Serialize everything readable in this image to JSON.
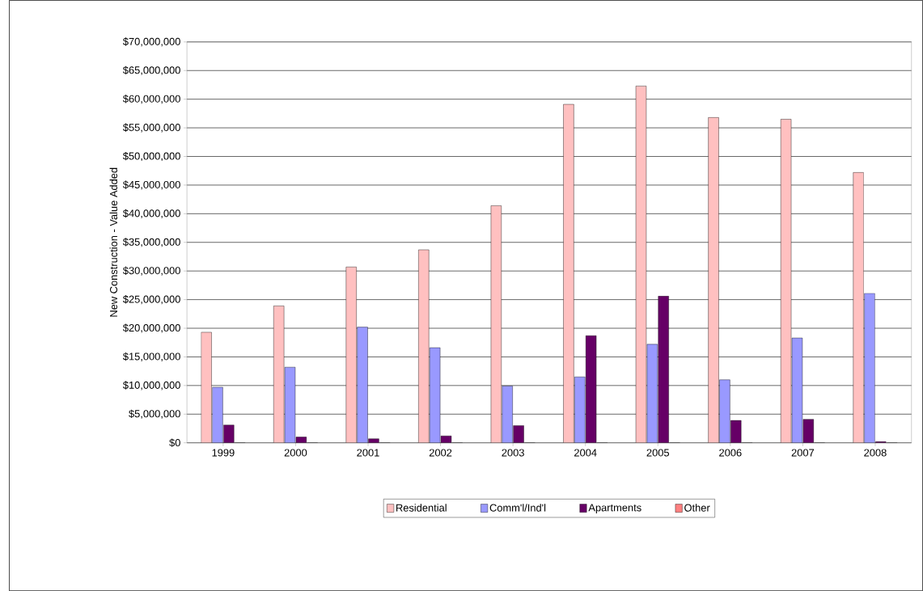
{
  "chart_data": {
    "type": "bar",
    "ylabel": "New Construction - Value Added",
    "categories": [
      "1999",
      "2000",
      "2001",
      "2002",
      "2003",
      "2004",
      "2005",
      "2006",
      "2007",
      "2008"
    ],
    "series": [
      {
        "name": "Residential",
        "color": "#ffc0c0",
        "values": [
          19300000,
          23900000,
          30700000,
          33700000,
          41400000,
          59100000,
          62300000,
          56800000,
          56500000,
          47200000
        ]
      },
      {
        "name": "Comm'l/Ind'l",
        "color": "#9999ff",
        "values": [
          9700000,
          13200000,
          20200000,
          16600000,
          9900000,
          11500000,
          17200000,
          11000000,
          18300000,
          26100000
        ]
      },
      {
        "name": "Apartments",
        "color": "#660066",
        "values": [
          3100000,
          1000000,
          700000,
          1200000,
          3000000,
          18700000,
          25600000,
          3900000,
          4100000,
          200000
        ]
      },
      {
        "name": "Other",
        "color": "#ff8080",
        "values": [
          0,
          0,
          0,
          0,
          0,
          0,
          0,
          0,
          0,
          0
        ]
      }
    ],
    "ylim": [
      0,
      70000000
    ],
    "yticks": [
      {
        "value": 0,
        "label": "$0"
      },
      {
        "value": 5000000,
        "label": "$5,000,000"
      },
      {
        "value": 10000000,
        "label": "$10,000,000"
      },
      {
        "value": 15000000,
        "label": "$15,000,000"
      },
      {
        "value": 20000000,
        "label": "$20,000,000"
      },
      {
        "value": 25000000,
        "label": "$25,000,000"
      },
      {
        "value": 30000000,
        "label": "$30,000,000"
      },
      {
        "value": 35000000,
        "label": "$35,000,000"
      },
      {
        "value": 40000000,
        "label": "$40,000,000"
      },
      {
        "value": 45000000,
        "label": "$45,000,000"
      },
      {
        "value": 50000000,
        "label": "$50,000,000"
      },
      {
        "value": 55000000,
        "label": "$55,000,000"
      },
      {
        "value": 60000000,
        "label": "$60,000,000"
      },
      {
        "value": 65000000,
        "label": "$65,000,000"
      },
      {
        "value": 70000000,
        "label": "$70,000,000"
      }
    ],
    "grid": "y",
    "legend": "bottom"
  }
}
